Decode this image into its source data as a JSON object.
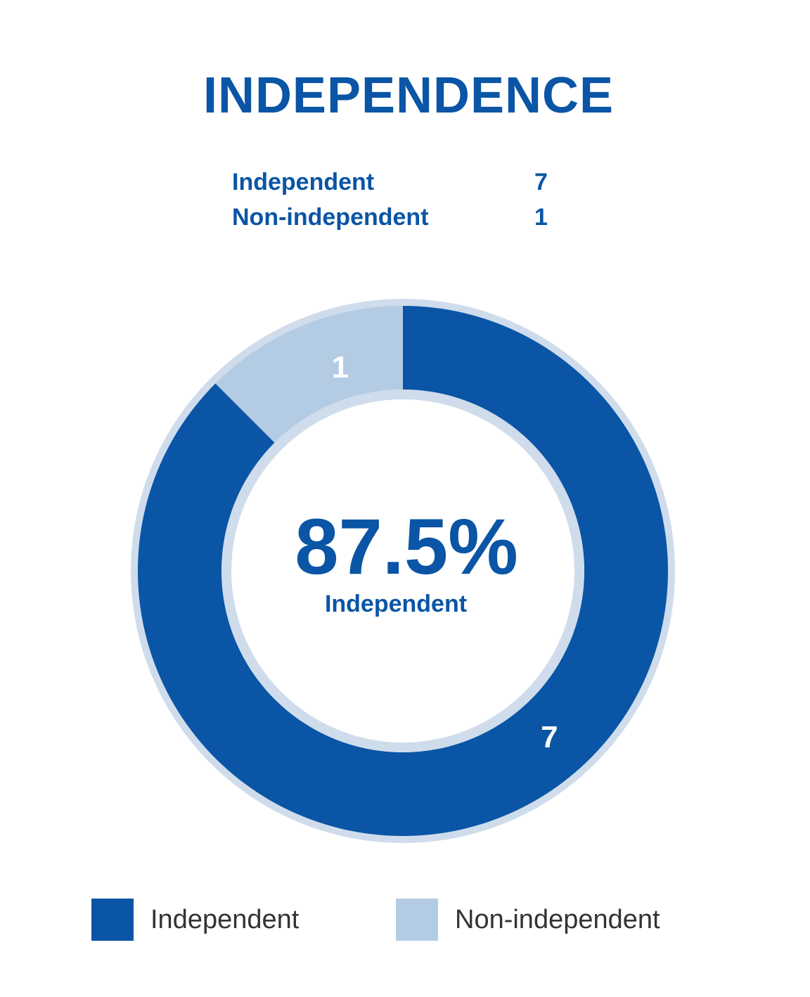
{
  "chart_data": {
    "type": "pie",
    "title": "INDEPENDENCE",
    "categories": [
      "Independent",
      "Non-independent"
    ],
    "values": [
      7,
      1
    ],
    "data_labels": [
      "7",
      "1"
    ],
    "center_value": "87.5%",
    "center_label": "Independent",
    "legend": [
      "Independent",
      "Non-independent"
    ],
    "legend_position": "bottom",
    "colors": {
      "Independent": "#0a55a5",
      "Non-independent": "#b4cbe4",
      "ring": "#cfdcec"
    }
  },
  "summary": [
    {
      "label": "Independent",
      "value": "7"
    },
    {
      "label": "Non-independent",
      "value": "1"
    }
  ]
}
